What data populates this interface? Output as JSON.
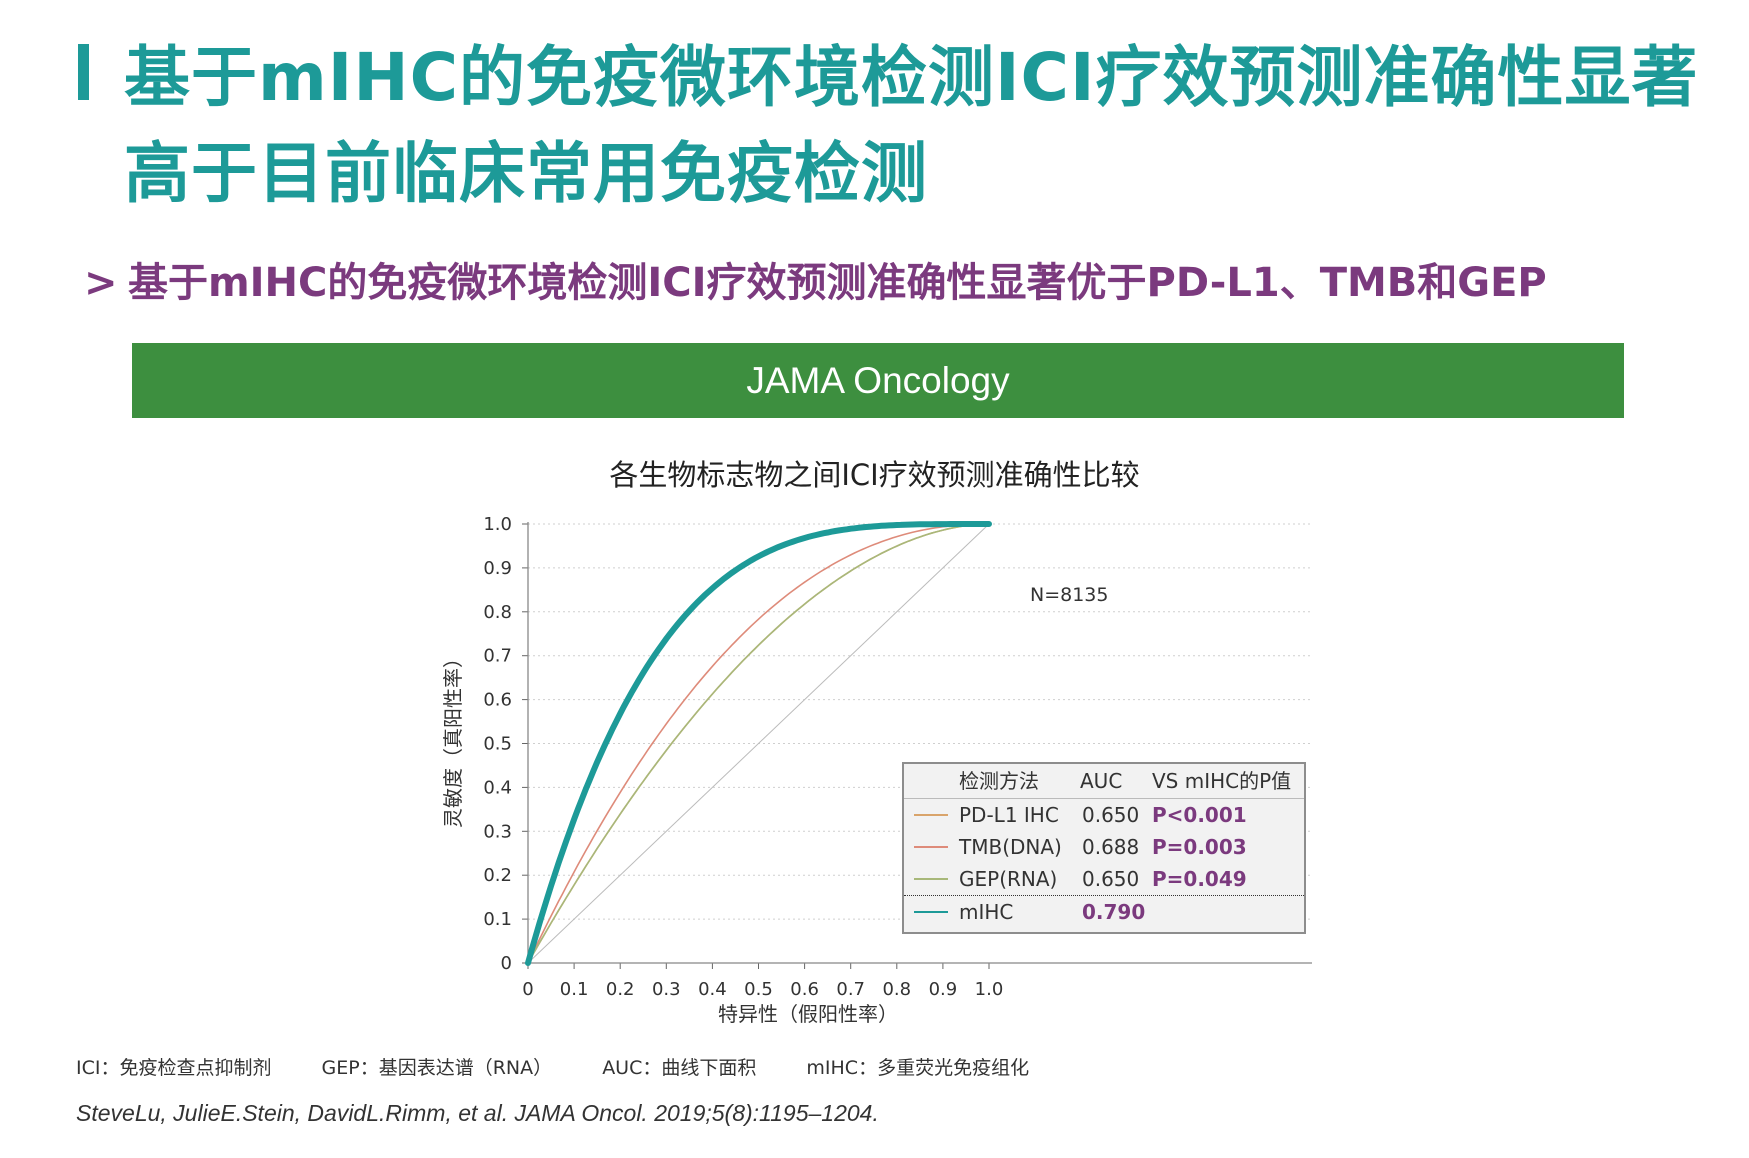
{
  "title": "基于mIHC的免疫微环境检测ICI疗效预测准确性显著\n高于目前临床常用免疫检测",
  "subtitle": "基于mIHC的免疫微环境检测ICI疗效预测准确性显著优于PD-L1、TMB和GEP",
  "banner": "JAMA Oncology",
  "colors": {
    "teal": "#1d9a98",
    "purple": "#7b3a7e",
    "green": "#3d8f3f"
  },
  "chart_data": {
    "type": "line",
    "title": "各生物标志物之间ICI疗效预测准确性比较",
    "xlabel": "特异性（假阳性率）",
    "ylabel": "灵敏度（真阳性率）",
    "xlim": [
      0,
      1.0
    ],
    "ylim": [
      0,
      1.0
    ],
    "x_ticks": [
      "0",
      "0.1",
      "0.2",
      "0.3",
      "0.4",
      "0.5",
      "0.6",
      "0.7",
      "0.8",
      "0.9",
      "1.0"
    ],
    "y_ticks": [
      "0",
      "0.1",
      "0.2",
      "0.3",
      "0.4",
      "0.5",
      "0.6",
      "0.7",
      "0.8",
      "0.9",
      "1.0"
    ],
    "grid": true,
    "annotation": "N=8135",
    "legend_placement": "bottom-right",
    "legend_headers": [
      "检测方法",
      "AUC",
      "VS mIHC的P值"
    ],
    "series": [
      {
        "name": "PD-L1 IHC",
        "auc": "0.650",
        "p": "P<0.001",
        "color": "#d9a46b"
      },
      {
        "name": "TMB(DNA)",
        "auc": "0.688",
        "p": "P=0.003",
        "color": "#de8b7a"
      },
      {
        "name": "GEP(RNA)",
        "auc": "0.650",
        "p": "P=0.049",
        "color": "#a8b87a"
      },
      {
        "name": "mIHC",
        "auc": "0.790",
        "p": "",
        "color": "#1d9a98"
      }
    ]
  },
  "footnotes": [
    "ICI：免疫检查点抑制剂",
    "GEP：基因表达谱（RNA）",
    "AUC：曲线下面积",
    "mIHC：多重荧光免疫组化"
  ],
  "citation": "SteveLu, JulieE.Stein, DavidL.Rimm, et al. JAMA Oncol. 2019;5(8):1195–1204."
}
